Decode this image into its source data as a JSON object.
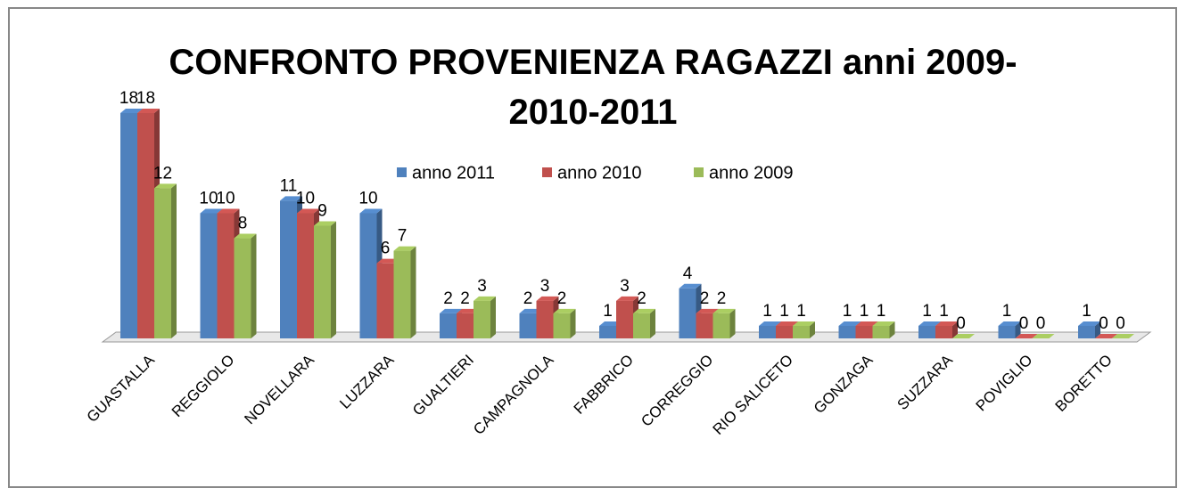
{
  "chart_data": {
    "type": "bar3d",
    "title": "CONFRONTO PROVENIENZA RAGAZZI anni 2009-2010-2011",
    "categories": [
      "GUASTALLA",
      "REGGIOLO",
      "NOVELLARA",
      "LUZZARA",
      "GUALTIERI",
      "CAMPAGNOLA",
      "FABBRICO",
      "CORREGGIO",
      "RIO SALICETO",
      "GONZAGA",
      "SUZZARA",
      "POVIGLIO",
      "BORETTO"
    ],
    "series": [
      {
        "name": "anno 2011",
        "color": "#4f81bd",
        "values": [
          18,
          10,
          11,
          10,
          2,
          2,
          1,
          4,
          1,
          1,
          1,
          1,
          1
        ]
      },
      {
        "name": "anno 2010",
        "color": "#c0504d",
        "values": [
          18,
          10,
          10,
          6,
          2,
          3,
          3,
          2,
          1,
          1,
          1,
          0,
          0
        ]
      },
      {
        "name": "anno 2009",
        "color": "#9bbb59",
        "values": [
          12,
          8,
          9,
          7,
          3,
          2,
          2,
          2,
          1,
          1,
          0,
          0,
          0
        ]
      }
    ]
  }
}
